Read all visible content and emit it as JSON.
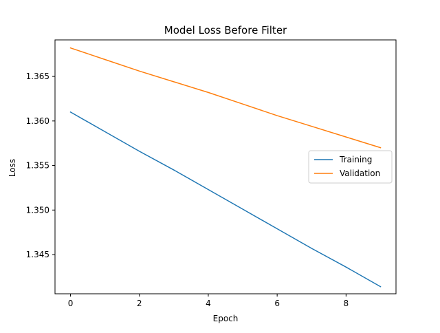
{
  "chart_data": {
    "type": "line",
    "title": "Model Loss Before Filter",
    "xlabel": "Epoch",
    "ylabel": "Loss",
    "x": [
      0,
      1,
      2,
      3,
      4,
      5,
      6,
      7,
      8,
      9
    ],
    "xlim": [
      -0.45,
      9.45
    ],
    "ylim": [
      1.3406,
      1.3691
    ],
    "xticks": [
      0,
      2,
      4,
      6,
      8
    ],
    "yticks": [
      1.345,
      1.35,
      1.355,
      1.36,
      1.365
    ],
    "xtick_labels": [
      "0",
      "2",
      "4",
      "6",
      "8"
    ],
    "ytick_labels": [
      "1.345",
      "1.350",
      "1.355",
      "1.360",
      "1.365"
    ],
    "grid": false,
    "legend_position": "center-right",
    "series": [
      {
        "name": "Training",
        "color": "#1f77b4",
        "values": [
          1.361,
          1.3588,
          1.3566,
          1.3545,
          1.3523,
          1.3501,
          1.3479,
          1.3457,
          1.3436,
          1.3414
        ]
      },
      {
        "name": "Validation",
        "color": "#ff7f0e",
        "values": [
          1.3682,
          1.3669,
          1.3656,
          1.3644,
          1.3632,
          1.3619,
          1.3606,
          1.3594,
          1.3582,
          1.357
        ]
      }
    ]
  }
}
